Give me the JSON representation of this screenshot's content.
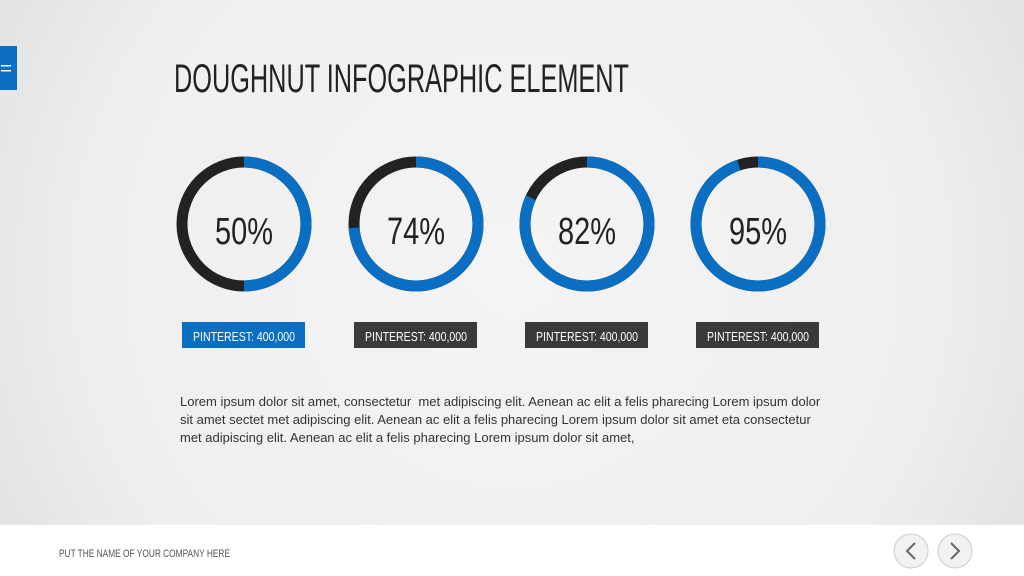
{
  "title": "DOUGHNUT INFOGRAPHIC ELEMENT",
  "donuts": [
    {
      "value": 50,
      "value_label": "50%",
      "caption": "PINTEREST: 400,000"
    },
    {
      "value": 74,
      "value_label": "74%",
      "caption": "PINTEREST: 400,000"
    },
    {
      "value": 82,
      "value_label": "82%",
      "caption": "PINTEREST: 400,000"
    },
    {
      "value": 95,
      "value_label": "95%",
      "caption": "PINTEREST: 400,000"
    }
  ],
  "body": "Lorem ipsum dolor sit amet, consectetur  met adipiscing elit. Aenean ac elit a felis pharecing Lorem ipsum dolor sit amet sectet met adipiscing elit. Aenean ac elit a felis pharecing Lorem ipsum dolor sit amet eta consectetur  met adipiscing elit. Aenean ac elit a felis pharecing Lorem ipsum dolor sit amet,",
  "footer": "PUT THE NAME OF YOUR COMPANY HERE"
}
